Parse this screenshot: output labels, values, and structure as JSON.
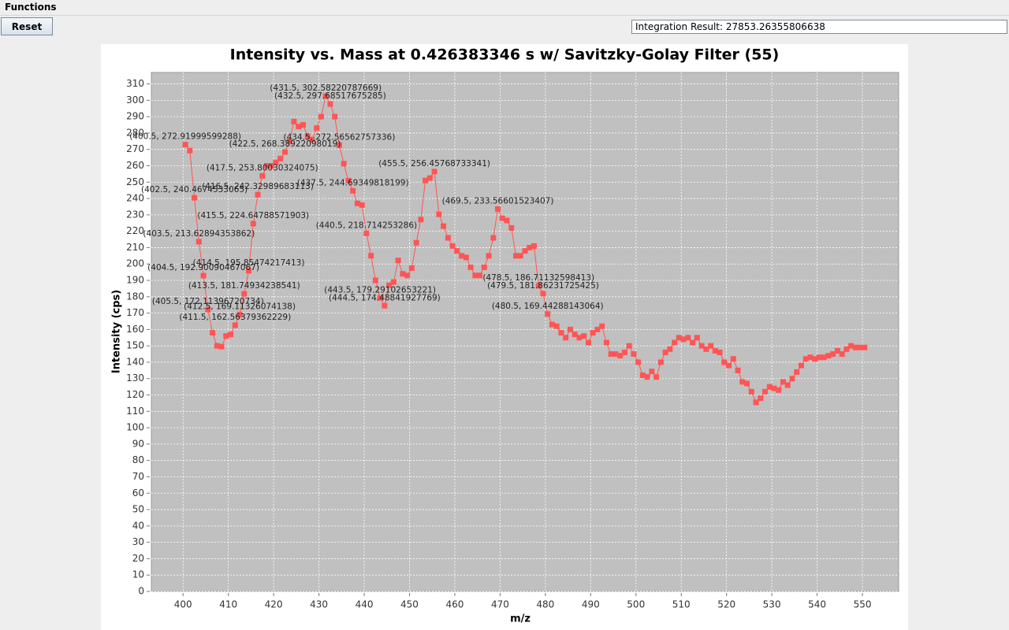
{
  "menu": {
    "title": "Functions"
  },
  "toolbar": {
    "reset": "Reset",
    "integration_result": "Integration Result: 27853.26355806638"
  },
  "chart_data": {
    "type": "line",
    "title": "Intensity vs. Mass at 0.426383346 s w/ Savitzky-Golay Filter (55)",
    "x_label": "m/z",
    "y_label": "Intensity (cps)",
    "color": "#ff5555",
    "grid": true,
    "xlim": [
      393,
      558
    ],
    "ylim": [
      0,
      317
    ],
    "xticks": [
      400,
      410,
      420,
      430,
      440,
      450,
      460,
      470,
      480,
      490,
      500,
      510,
      520,
      530,
      540,
      550
    ],
    "yticks": [
      0,
      10,
      20,
      30,
      40,
      50,
      60,
      70,
      80,
      90,
      100,
      110,
      120,
      130,
      140,
      150,
      160,
      170,
      180,
      190,
      200,
      210,
      220,
      230,
      240,
      250,
      260,
      270,
      280,
      290,
      300,
      310
    ],
    "x": [
      400.5,
      401.5,
      402.5,
      403.5,
      404.5,
      405.5,
      406.5,
      407.5,
      408.5,
      409.5,
      410.5,
      411.5,
      412.5,
      413.5,
      414.5,
      415.5,
      416.5,
      417.5,
      418.5,
      419.5,
      420.5,
      421.5,
      422.5,
      423.5,
      424.5,
      425.5,
      426.5,
      427.5,
      428.5,
      429.5,
      430.5,
      431.5,
      432.5,
      433.5,
      434.5,
      435.5,
      436.5,
      437.5,
      438.5,
      439.5,
      440.5,
      441.5,
      442.5,
      443.5,
      444.5,
      445.5,
      446.5,
      447.5,
      448.5,
      449.5,
      450.5,
      451.5,
      452.5,
      453.5,
      454.5,
      455.5,
      456.5,
      457.5,
      458.5,
      459.5,
      460.5,
      461.5,
      462.5,
      463.5,
      464.5,
      465.5,
      466.5,
      467.5,
      468.5,
      469.5,
      470.5,
      471.5,
      472.5,
      473.5,
      474.5,
      475.5,
      476.5,
      477.5,
      478.5,
      479.5,
      480.5,
      481.5,
      482.5,
      483.5,
      484.5,
      485.5,
      486.5,
      487.5,
      488.5,
      489.5,
      490.5,
      491.5,
      492.5,
      493.5,
      494.5,
      495.5,
      496.5,
      497.5,
      498.5,
      499.5,
      500.5,
      501.5,
      502.5,
      503.5,
      504.5,
      505.5,
      506.5,
      507.5,
      508.5,
      509.5,
      510.5,
      511.5,
      512.5,
      513.5,
      514.5,
      515.5,
      516.5,
      517.5,
      518.5,
      519.5,
      520.5,
      521.5,
      522.5,
      523.5,
      524.5,
      525.5,
      526.5,
      527.5,
      528.5,
      529.5,
      530.5,
      531.5,
      532.5,
      533.5,
      534.5,
      535.5,
      536.5,
      537.5,
      538.5,
      539.5,
      540.5,
      541.5,
      542.5,
      543.5,
      544.5,
      545.5,
      546.5,
      547.5,
      548.5,
      549.5,
      550.5
    ],
    "values": [
      272.91999599288,
      269.27,
      240.4674533065,
      213.62894353862,
      192.90090467067,
      172.11396720734,
      158,
      150,
      149.5,
      156,
      157,
      162.56379362229,
      169.11326074138,
      181.74934238541,
      195.85474217413,
      224.64788571903,
      242.32989683113,
      253.80030324075,
      260,
      260,
      262,
      264.4,
      268.38922098019,
      275,
      287,
      284,
      285,
      278,
      276,
      283,
      290,
      302.58220787669,
      297.68517675285,
      290,
      272.56562757336,
      261.27,
      250.94,
      244.69349818199,
      237,
      236,
      218.714253286,
      205.06,
      190,
      179.29102653221,
      174.48841927769,
      187,
      189,
      202.18,
      194,
      193,
      197.5,
      213,
      227.16,
      251,
      252.5,
      256.45768733341,
      230.33,
      223.13,
      216,
      211,
      208,
      205,
      204,
      198,
      193,
      193,
      198,
      205,
      216,
      233.56601523407,
      228,
      226.58,
      222,
      205,
      205,
      208,
      210,
      211,
      186.71132598413,
      181.86231725425,
      169.44288143064,
      163,
      162,
      158,
      155,
      160,
      157,
      155,
      156,
      152,
      158,
      160,
      162,
      152,
      145,
      145,
      144,
      146,
      150,
      145,
      140,
      132,
      131,
      134.37,
      131,
      140,
      146,
      148,
      152,
      155,
      154,
      155,
      152,
      155,
      150,
      148,
      150,
      147,
      146,
      140,
      138,
      142,
      135,
      128,
      127,
      122,
      115.48,
      118,
      122,
      125,
      124,
      123,
      128,
      126,
      130,
      134,
      138,
      142,
      143,
      142,
      143,
      143,
      144,
      145,
      147,
      145,
      148,
      150,
      149,
      149,
      149
    ],
    "value_labels": [
      "(400.5, 272.91999599288)",
      null,
      "(402.5, 240.4674533065)",
      "(403.5, 213.62894353862)",
      "(404.5, 192.90090467067)",
      "(405.5, 172.11396720734)",
      null,
      null,
      null,
      null,
      null,
      "(411.5, 162.56379362229)",
      "(412.5, 169.11326074138)",
      "(413.5, 181.74934238541)",
      "(414.5, 195.85474217413)",
      "(415.5, 224.64788571903)",
      "(416.5, 242.32989683113)",
      "(417.5, 253.80030324075)",
      null,
      null,
      null,
      null,
      "(422.5, 268.38922098019)",
      null,
      null,
      null,
      null,
      null,
      null,
      null,
      null,
      "(431.5, 302.58220787669)",
      "(432.5, 297.68517675285)",
      null,
      "(434.5, 272.56562757336)",
      null,
      null,
      "(437.5, 244.69349818199)",
      null,
      null,
      "(440.5, 218.714253286)",
      null,
      null,
      "(443.5, 179.29102653221)",
      "(444.5, 174.48841927769)",
      null,
      null,
      null,
      null,
      null,
      null,
      null,
      null,
      null,
      null,
      "(455.5, 256.45768733341)",
      null,
      null,
      null,
      null,
      null,
      null,
      null,
      null,
      null,
      null,
      null,
      null,
      null,
      "(469.5, 233.56601523407)",
      null,
      null,
      null,
      null,
      null,
      null,
      null,
      null,
      "(478.5, 186.71132598413)",
      "(479.5, 181.86231725425)",
      "(480.5, 169.44288143064)",
      null,
      null,
      null,
      null,
      null,
      null,
      null,
      null,
      null,
      null,
      null,
      null,
      null,
      null,
      null,
      null,
      null,
      null,
      null,
      null,
      null,
      null,
      null,
      null,
      null,
      null,
      null,
      null,
      null,
      null,
      null,
      null,
      null,
      null,
      null,
      null,
      null,
      null,
      null,
      null,
      null,
      null,
      null,
      null,
      null,
      null,
      null,
      null,
      null,
      null,
      null,
      null,
      null,
      null,
      null,
      null,
      null,
      null,
      null,
      null,
      null,
      null,
      null,
      null,
      null,
      null,
      null,
      null,
      null,
      null
    ]
  }
}
